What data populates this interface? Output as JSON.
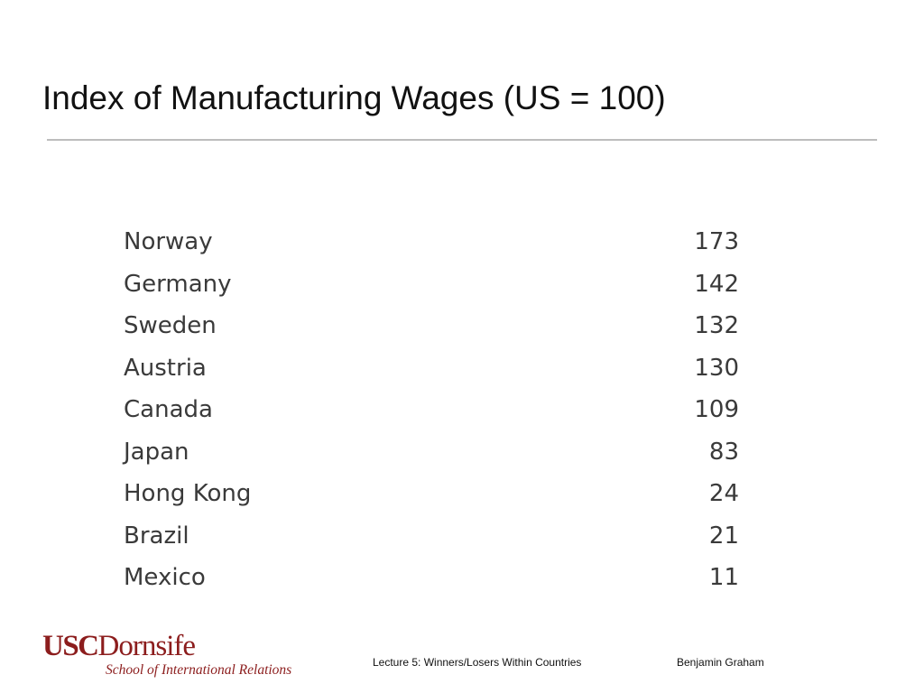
{
  "slide": {
    "title": "Index of Manufacturing Wages (US = 100)"
  },
  "table": {
    "rows": [
      {
        "country": "Norway",
        "value": "173"
      },
      {
        "country": "Germany",
        "value": "142"
      },
      {
        "country": "Sweden",
        "value": "132"
      },
      {
        "country": "Austria",
        "value": "130"
      },
      {
        "country": "Canada",
        "value": "109"
      },
      {
        "country": "Japan",
        "value": "83"
      },
      {
        "country": "Hong Kong",
        "value": "24"
      },
      {
        "country": "Brazil",
        "value": "21"
      },
      {
        "country": "Mexico",
        "value": "11"
      }
    ]
  },
  "footer": {
    "logo_usc": "USC",
    "logo_dornsife": "Dornsife",
    "logo_subtitle": "School of International Relations",
    "lecture": "Lecture 5: Winners/Losers Within Countries",
    "author": "Benjamin Graham",
    "brand_color": "#8c1d1d"
  }
}
